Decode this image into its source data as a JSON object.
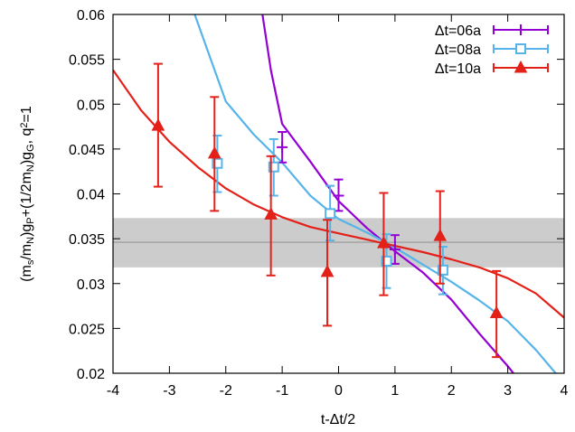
{
  "chart_data": {
    "type": "line",
    "xlabel": "t-Δt/2",
    "ylabel_parts": [
      {
        "t": "(m",
        "s": "n"
      },
      {
        "t": "s",
        "s": "sub"
      },
      {
        "t": "/m",
        "s": "n"
      },
      {
        "t": "N",
        "s": "sub"
      },
      {
        "t": ")g",
        "s": "n"
      },
      {
        "t": "P",
        "s": "sub"
      },
      {
        "t": "+(1/2m",
        "s": "n"
      },
      {
        "t": "N",
        "s": "sub"
      },
      {
        "t": ")g",
        "s": "n"
      },
      {
        "t": "G",
        "s": "sub"
      },
      {
        "t": ", q",
        "s": "n"
      },
      {
        "t": "2",
        "s": "sup"
      },
      {
        "t": "=1",
        "s": "n"
      }
    ],
    "xlim": [
      -4,
      4
    ],
    "ylim": [
      0.02,
      0.06
    ],
    "xticks": [
      -4,
      -3,
      -2,
      -1,
      0,
      1,
      2,
      3,
      4
    ],
    "xtick_labels": [
      "-4",
      "-3",
      "-2",
      "-1",
      "0",
      "1",
      "2",
      "3",
      "4"
    ],
    "yticks": [
      0.02,
      0.025,
      0.03,
      0.035,
      0.04,
      0.045,
      0.05,
      0.055,
      0.06
    ],
    "ytick_labels": [
      "0.02",
      "0.025",
      "0.03",
      "0.035",
      "0.04",
      "0.045",
      "0.05",
      "0.055",
      "0.06"
    ],
    "legend_position": "top-right",
    "band": {
      "x": [
        -4,
        4
      ],
      "center": 0.0346,
      "low": 0.0318,
      "high": 0.0373,
      "color": "#cccccc",
      "line_color": "#a0a0a0"
    },
    "series": [
      {
        "name": "Δt=06a",
        "color": "#9400d3",
        "marker": "plus",
        "points": [
          {
            "x": -1.0,
            "y": 0.0452,
            "lo": 0.0435,
            "hi": 0.0469
          },
          {
            "x": 0.0,
            "y": 0.0398,
            "lo": 0.0381,
            "hi": 0.0416
          },
          {
            "x": 1.0,
            "y": 0.0338,
            "lo": 0.0322,
            "hi": 0.0354
          }
        ],
        "fit_curve": [
          {
            "x": -1.35,
            "y": 0.06
          },
          {
            "x": -1.2,
            "y": 0.0538
          },
          {
            "x": -1.0,
            "y": 0.0478
          },
          {
            "x": -0.5,
            "y": 0.0436
          },
          {
            "x": 0.0,
            "y": 0.0392
          },
          {
            "x": 0.5,
            "y": 0.0362
          },
          {
            "x": 1.0,
            "y": 0.0336
          },
          {
            "x": 1.5,
            "y": 0.0312
          },
          {
            "x": 2.0,
            "y": 0.0282
          },
          {
            "x": 2.5,
            "y": 0.0244
          },
          {
            "x": 3.0,
            "y": 0.0208
          },
          {
            "x": 3.1,
            "y": 0.02
          }
        ]
      },
      {
        "name": "Δt=08a",
        "color": "#56b4e9",
        "marker": "square",
        "points": [
          {
            "x": -2.15,
            "y": 0.0434,
            "lo": 0.0402,
            "hi": 0.0465
          },
          {
            "x": -1.15,
            "y": 0.043,
            "lo": 0.0398,
            "hi": 0.0461
          },
          {
            "x": -0.15,
            "y": 0.0378,
            "lo": 0.0348,
            "hi": 0.0409
          },
          {
            "x": 0.85,
            "y": 0.0325,
            "lo": 0.0295,
            "hi": 0.0355
          },
          {
            "x": 1.85,
            "y": 0.0315,
            "lo": 0.0288,
            "hi": 0.0341
          }
        ],
        "fit_curve": [
          {
            "x": -2.55,
            "y": 0.06
          },
          {
            "x": -2.3,
            "y": 0.0556
          },
          {
            "x": -2.0,
            "y": 0.0503
          },
          {
            "x": -1.5,
            "y": 0.0466
          },
          {
            "x": -1.0,
            "y": 0.0435
          },
          {
            "x": -0.5,
            "y": 0.0398
          },
          {
            "x": 0.0,
            "y": 0.0372
          },
          {
            "x": 0.5,
            "y": 0.0357
          },
          {
            "x": 1.0,
            "y": 0.034
          },
          {
            "x": 1.5,
            "y": 0.0321
          },
          {
            "x": 2.0,
            "y": 0.0302
          },
          {
            "x": 2.5,
            "y": 0.0281
          },
          {
            "x": 3.0,
            "y": 0.0258
          },
          {
            "x": 3.5,
            "y": 0.0226
          },
          {
            "x": 3.85,
            "y": 0.02
          }
        ]
      },
      {
        "name": "Δt=10a",
        "color": "#e32119",
        "marker": "triangle",
        "points": [
          {
            "x": -3.2,
            "y": 0.0476,
            "lo": 0.0408,
            "hi": 0.0545
          },
          {
            "x": -2.2,
            "y": 0.0445,
            "lo": 0.0381,
            "hi": 0.0508
          },
          {
            "x": -1.2,
            "y": 0.0377,
            "lo": 0.0309,
            "hi": 0.0442
          },
          {
            "x": -0.2,
            "y": 0.0313,
            "lo": 0.0253,
            "hi": 0.0371
          },
          {
            "x": 0.8,
            "y": 0.0345,
            "lo": 0.0287,
            "hi": 0.0401
          },
          {
            "x": 1.8,
            "y": 0.0353,
            "lo": 0.03,
            "hi": 0.0403
          },
          {
            "x": 2.8,
            "y": 0.0267,
            "lo": 0.0218,
            "hi": 0.0314
          }
        ],
        "fit_curve": [
          {
            "x": -4.0,
            "y": 0.0538
          },
          {
            "x": -3.5,
            "y": 0.0493
          },
          {
            "x": -3.0,
            "y": 0.0458
          },
          {
            "x": -2.5,
            "y": 0.043
          },
          {
            "x": -2.0,
            "y": 0.0406
          },
          {
            "x": -1.5,
            "y": 0.0388
          },
          {
            "x": -1.0,
            "y": 0.0374
          },
          {
            "x": -0.5,
            "y": 0.0363
          },
          {
            "x": 0.0,
            "y": 0.0356
          },
          {
            "x": 0.5,
            "y": 0.0349
          },
          {
            "x": 1.0,
            "y": 0.0342
          },
          {
            "x": 1.5,
            "y": 0.0335
          },
          {
            "x": 2.0,
            "y": 0.0327
          },
          {
            "x": 2.5,
            "y": 0.0318
          },
          {
            "x": 3.0,
            "y": 0.0306
          },
          {
            "x": 3.5,
            "y": 0.0289
          },
          {
            "x": 4.0,
            "y": 0.0262
          }
        ]
      }
    ]
  }
}
